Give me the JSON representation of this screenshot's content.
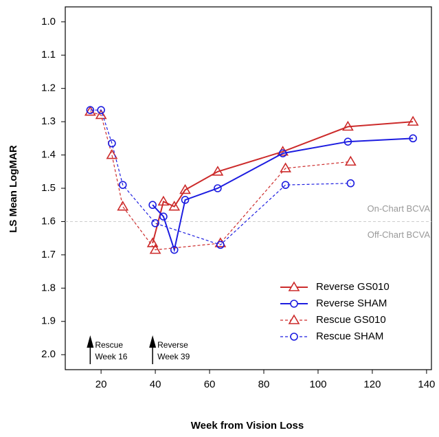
{
  "chart_data": {
    "type": "line",
    "xlabel": "Week from Vision Loss",
    "ylabel": "LS Mean LogMAR",
    "xlim": [
      6.8,
      141.8
    ],
    "xticks": [
      20,
      40,
      60,
      80,
      100,
      120,
      140
    ],
    "ylim": [
      2.045,
      0.955
    ],
    "yticks": [
      {
        "value": 1,
        "label": "1.0"
      },
      1.1,
      1.2,
      1.3,
      1.4,
      1.5,
      1.6,
      1.7,
      1.8,
      1.9,
      {
        "value": 2,
        "label": "2.0"
      }
    ],
    "series": [
      {
        "name": "Reverse GS010",
        "color": "#cc2a2a",
        "dash": false,
        "marker": "triangle",
        "x": [
          39,
          43,
          47,
          51,
          63,
          87,
          111,
          135
        ],
        "values": [
          1.665,
          1.54,
          1.555,
          1.505,
          1.45,
          1.39,
          1.315,
          1.3
        ]
      },
      {
        "name": "Reverse SHAM",
        "color": "#1c1ce0",
        "dash": false,
        "marker": "circle",
        "x": [
          39,
          43,
          47,
          51,
          63,
          87,
          111,
          135
        ],
        "values": [
          1.55,
          1.585,
          1.685,
          1.535,
          1.5,
          1.395,
          1.36,
          1.35
        ]
      },
      {
        "name": "Rescue GS010",
        "color": "#cc2a2a",
        "dash": true,
        "marker": "triangle",
        "x": [
          16,
          20,
          24,
          28,
          40,
          64,
          88,
          112
        ],
        "values": [
          1.27,
          1.28,
          1.4,
          1.555,
          1.685,
          1.665,
          1.44,
          1.42
        ]
      },
      {
        "name": "Rescue SHAM",
        "color": "#1c1ce0",
        "dash": true,
        "marker": "circle",
        "x": [
          16,
          20,
          24,
          28,
          40,
          64,
          88,
          112
        ],
        "values": [
          1.265,
          1.265,
          1.365,
          1.49,
          1.605,
          1.67,
          1.49,
          1.485
        ]
      }
    ],
    "hline": {
      "value": 1.6,
      "above": "On-Chart BCVA",
      "below": "Off-Chart BCVA"
    },
    "arrows": [
      {
        "x": 16,
        "label": [
          "Rescue",
          "Week 16"
        ]
      },
      {
        "x": 39,
        "label": [
          "Reverse",
          "Week 39"
        ]
      }
    ],
    "legend": "lower right"
  }
}
